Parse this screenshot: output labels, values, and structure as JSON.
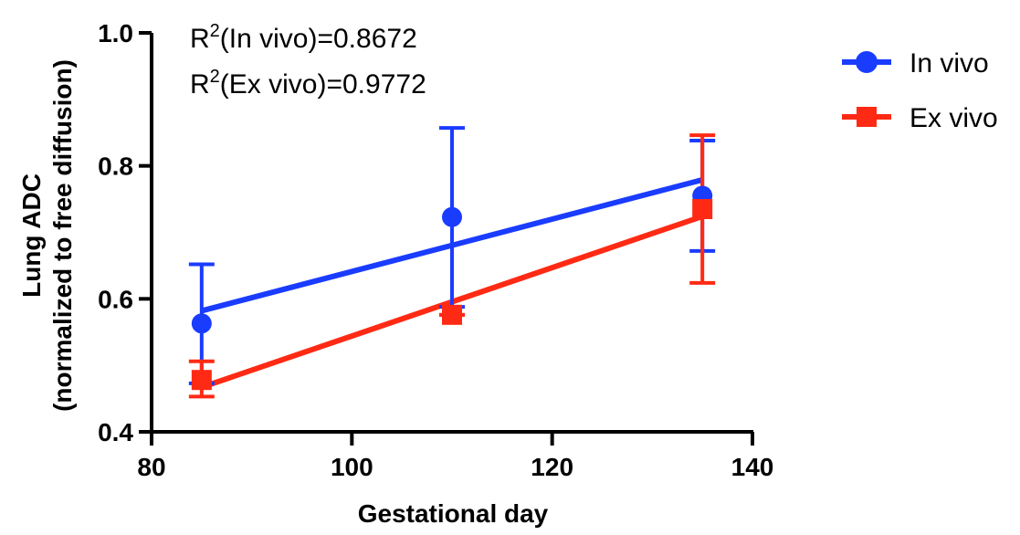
{
  "chart_data": {
    "type": "scatter",
    "xlabel": "Gestational day",
    "ylabel_line1": "Lung ADC",
    "ylabel_line2": "(normalized to free diffusion)",
    "xlim": [
      80,
      140
    ],
    "ylim": [
      0.4,
      1.0
    ],
    "xticks": [
      80,
      100,
      120,
      140
    ],
    "xtick_labels": [
      "80",
      "100",
      "120",
      "140"
    ],
    "yticks": [
      0.4,
      0.6,
      0.8,
      1.0
    ],
    "ytick_labels": [
      "0.4",
      "0.6",
      "0.8",
      "1.0"
    ],
    "grid": false,
    "legend_position": "top-right",
    "annotations": {
      "r2_invivo_prefix": "R",
      "r2_invivo_sup": "2",
      "r2_invivo_suffix": "(In vivo)=0.8672",
      "r2_exvivo_prefix": "R",
      "r2_exvivo_sup": "2",
      "r2_exvivo_suffix": "(Ex vivo)=0.9772"
    },
    "series": [
      {
        "name": "In vivo",
        "color": "#1a3cff",
        "marker": "circle",
        "x": [
          85,
          110,
          135
        ],
        "y": [
          0.563,
          0.723,
          0.755
        ],
        "err_low": [
          0.473,
          0.588,
          0.672
        ],
        "err_high": [
          0.652,
          0.857,
          0.838
        ],
        "fit": {
          "x": [
            85,
            135
          ],
          "y": [
            0.582,
            0.779
          ]
        }
      },
      {
        "name": "Ex vivo",
        "color": "#ff2a14",
        "marker": "square",
        "x": [
          85,
          110,
          135
        ],
        "y": [
          0.478,
          0.576,
          0.735
        ],
        "err_low": [
          0.453,
          0.576,
          0.624
        ],
        "err_high": [
          0.506,
          0.576,
          0.846
        ],
        "fit": {
          "x": [
            85,
            135
          ],
          "y": [
            0.467,
            0.724
          ]
        }
      }
    ]
  }
}
